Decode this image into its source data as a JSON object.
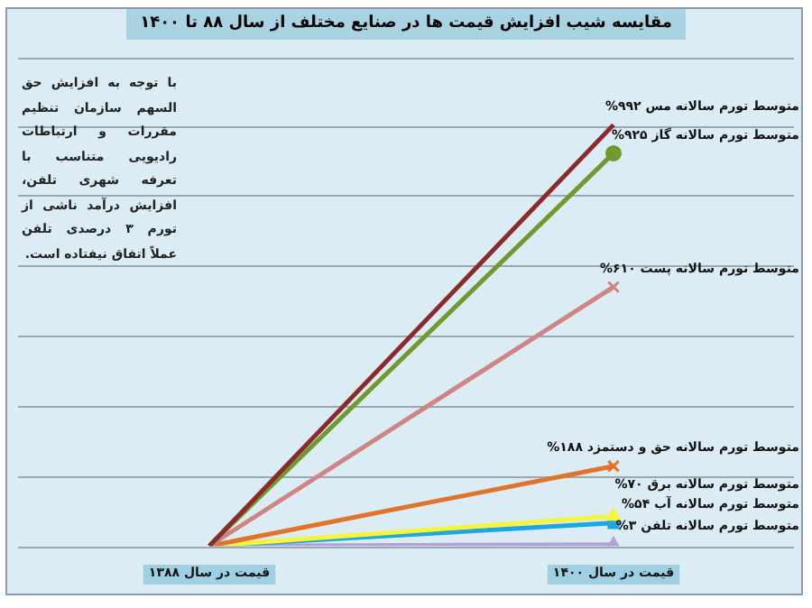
{
  "chart_data": {
    "type": "line",
    "title": "مقایسه شیب افزایش قیمت ها در صنایع مختلف از سال ۸۸ تا ۱۴۰۰",
    "categories": [
      "قیمت در سال ۱۳۸۸",
      "قیمت در سال ۱۴۰۰"
    ],
    "ylim": [
      0,
      1150
    ],
    "yticks": [
      {
        "value": 0,
        "label": null
      },
      {
        "value": 165,
        "label": null
      },
      {
        "value": 330,
        "label": null
      },
      {
        "value": 495,
        "label": null
      },
      {
        "value": 660,
        "label": null
      },
      {
        "value": 825,
        "label": null
      },
      {
        "value": 990,
        "label": null
      }
    ],
    "tick_labels": "x",
    "grid": "y",
    "legend": false,
    "series": [
      {
        "color": "#8b2a2a",
        "marker": "none",
        "values": [
          0,
          992
        ],
        "value_labels": [
          null,
          "متوسط تورم سالانه مس ۹۹۲%"
        ]
      },
      {
        "color": "#6f9a2f",
        "marker": "circle",
        "values": [
          0,
          925
        ],
        "value_labels": [
          null,
          "متوسط تورم سالانه گاز ۹۲۵%"
        ]
      },
      {
        "color": "#d08585",
        "marker": "cross",
        "values": [
          0,
          610
        ],
        "value_labels": [
          null,
          "متوسط تورم سالانه پست ۶۱۰%"
        ]
      },
      {
        "color": "#e0742a",
        "marker": "cross",
        "values": [
          0,
          188
        ],
        "value_labels": [
          null,
          "متوسط تورم سالانه حق و دستمزد ۱۸۸%"
        ]
      },
      {
        "color": "#f5f53c",
        "marker": "triangle",
        "values": [
          0,
          70
        ],
        "value_labels": [
          null,
          "متوسط تورم سالانه برق ۷۰%"
        ]
      },
      {
        "color": "#1ea6e0",
        "marker": "square",
        "values": [
          0,
          54
        ],
        "value_labels": [
          null,
          "متوسط تورم سالانه آب ۵۴%"
        ]
      },
      {
        "color": "#b3a0d6",
        "marker": "triangle",
        "values": [
          0,
          3
        ],
        "value_labels": [
          null,
          "متوسط تورم سالانه تلفن ۳%"
        ]
      }
    ],
    "annotations": [
      "با توجه به افزایش حق السهم سازمان تنظیم مقررات و ارتباطات رادیویی متناسب با تعرفه شهری تلفن، افزایش درآمد ناشی از تورم ۳ درصدی تلفن عملاً اتفاق نیفتاده است."
    ]
  }
}
